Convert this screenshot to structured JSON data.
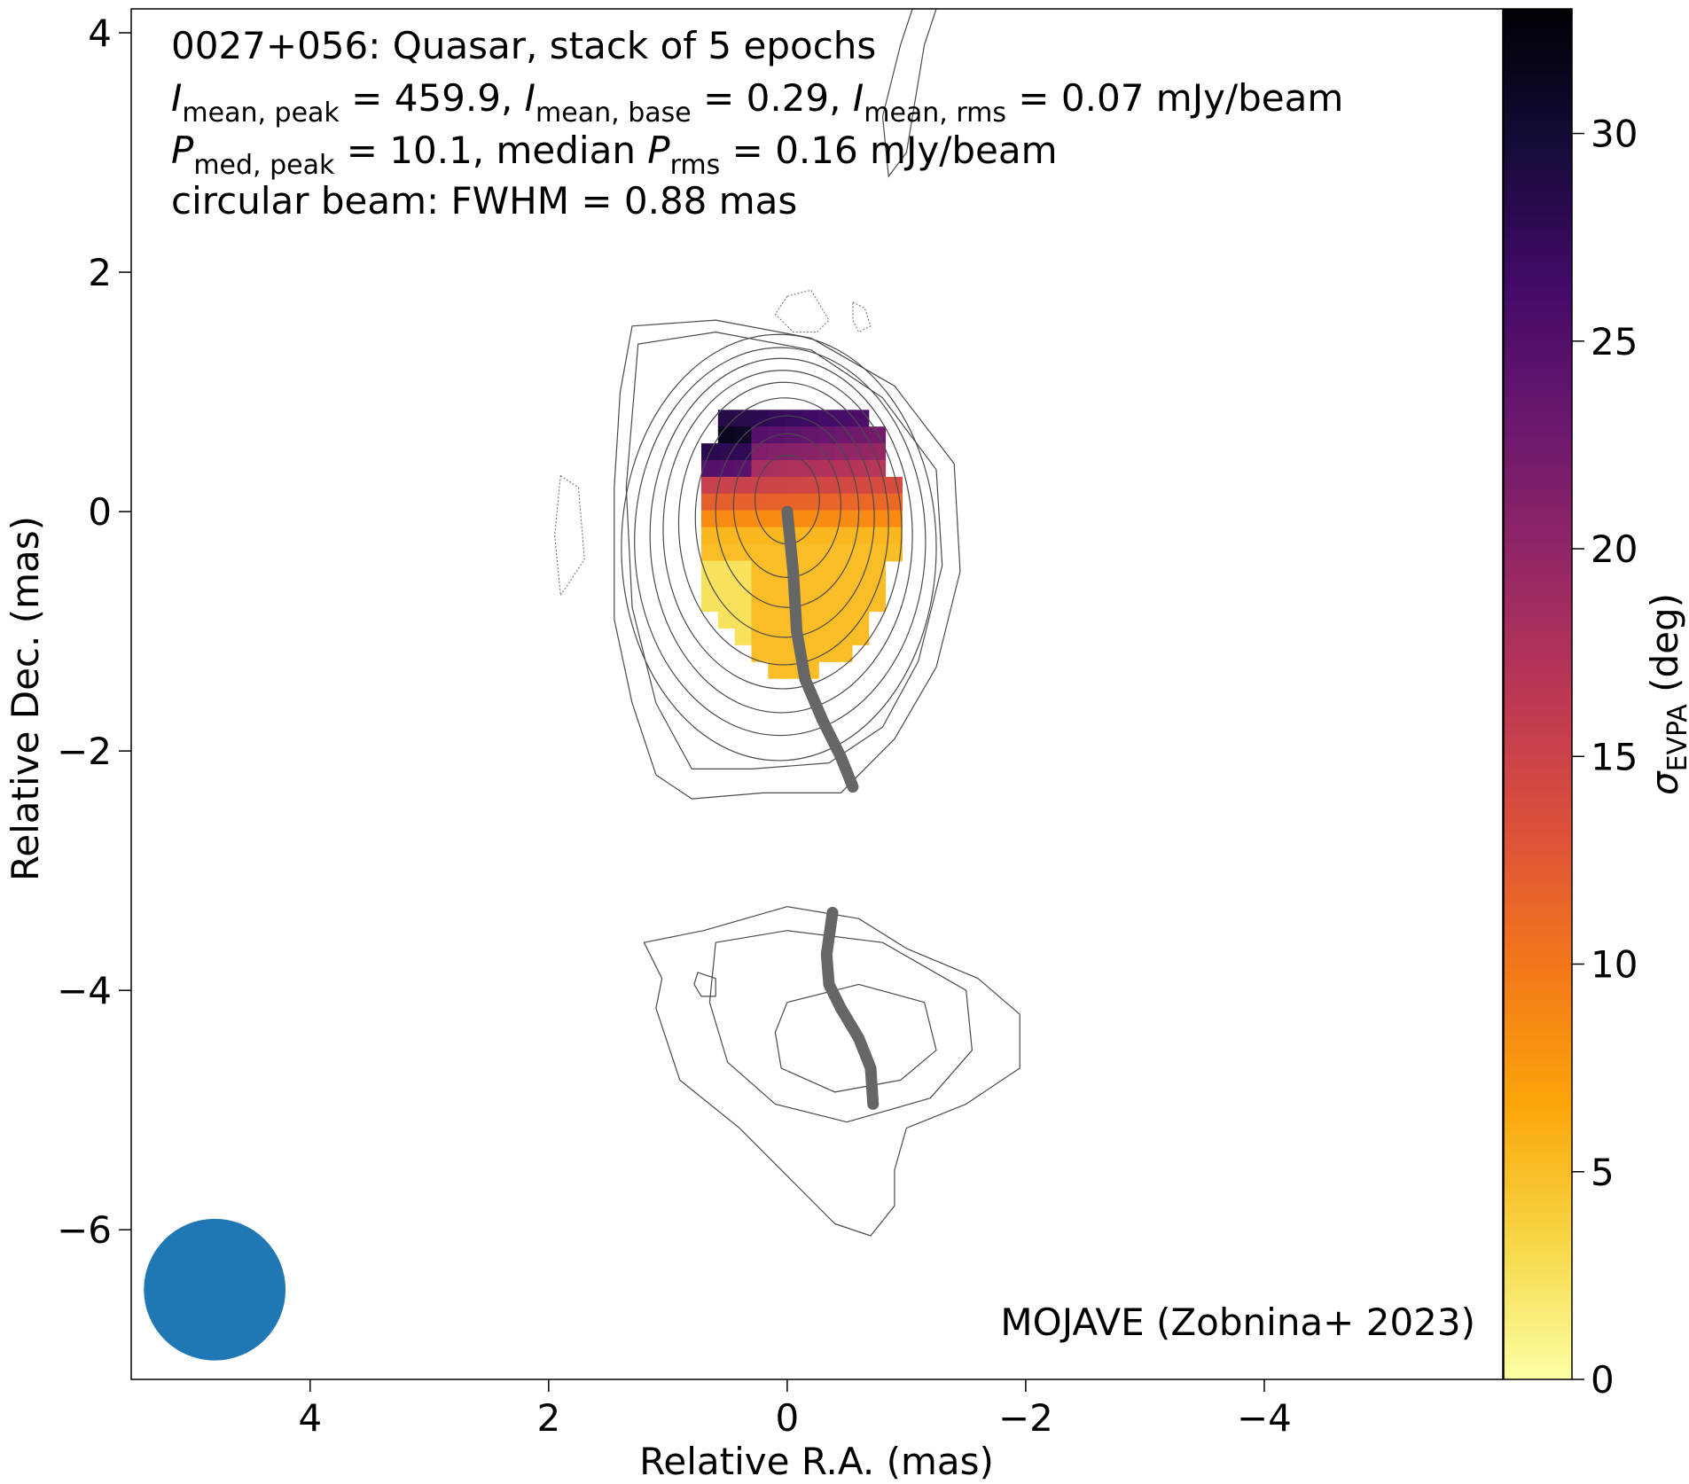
{
  "chart_data": {
    "type": "heatmap",
    "annotation": {
      "line1": "0027+056: Quasar, stack of 5 epochs",
      "line2": {
        "a_sym": "I",
        "a_sub": "mean, peak",
        "a_val": " = 459.9, ",
        "b_sym": "I",
        "b_sub": "mean, base",
        "b_val": " = 0.29, ",
        "c_sym": "I",
        "c_sub": "mean, rms",
        "c_val": " = 0.07 mJy/beam"
      },
      "line3": {
        "a_sym": "P",
        "a_sub": "med, peak",
        "a_val": " = 10.1, median ",
        "b_sym": "P",
        "b_sub": "rms",
        "b_val": " = 0.16 mJy/beam"
      },
      "line4": "circular beam: FWHM = 0.88 mas"
    },
    "credit": "MOJAVE (Zobnina+ 2023)",
    "xlabel": "Relative R.A. (mas)",
    "ylabel": "Relative Dec. (mas)",
    "colorbar": {
      "label_sym": "σ",
      "label_sub": "EVPA",
      "label_unit": " (deg)",
      "range": [
        0,
        33
      ],
      "ticks": [
        0,
        5,
        10,
        15,
        20,
        25,
        30
      ],
      "colormap": "inferno_r",
      "stops": [
        "#fcffa4",
        "#f6d746",
        "#fca50a",
        "#f37819",
        "#dd513a",
        "#bc3754",
        "#932667",
        "#6a176e",
        "#420a68",
        "#160b39",
        "#000004"
      ]
    },
    "xlim": [
      5.5,
      -6.0
    ],
    "ylim": [
      -7.25,
      4.2
    ],
    "xticks": [
      4,
      2,
      0,
      -2,
      -4
    ],
    "xtick_labels": [
      "4",
      "2",
      "0",
      "−2",
      "−4"
    ],
    "yticks": [
      -6,
      -4,
      -2,
      0,
      2,
      4
    ],
    "ytick_labels": [
      "−6",
      "−4",
      "−2",
      "0",
      "2",
      "4"
    ],
    "beam": {
      "center": [
        4.8,
        -6.5
      ],
      "fwhm_mas": 0.88,
      "color": "#1f77b4"
    },
    "ridge_lines": [
      {
        "color": "#666666",
        "points": [
          [
            0.0,
            0.0
          ],
          [
            -0.05,
            -0.5
          ],
          [
            -0.08,
            -1.0
          ],
          [
            -0.15,
            -1.4
          ],
          [
            -0.3,
            -1.75
          ],
          [
            -0.45,
            -2.05
          ],
          [
            -0.55,
            -2.3
          ]
        ]
      },
      {
        "color": "#666666",
        "points": [
          [
            -0.38,
            -3.35
          ],
          [
            -0.33,
            -3.7
          ],
          [
            -0.35,
            -3.95
          ],
          [
            -0.45,
            -4.15
          ],
          [
            -0.6,
            -4.4
          ],
          [
            -0.7,
            -4.65
          ],
          [
            -0.72,
            -4.95
          ]
        ]
      }
    ],
    "core_contours": [
      {
        "cx": 0.0,
        "cy": 0.1,
        "rx": 0.27,
        "ry": 0.37
      },
      {
        "cx": 0.0,
        "cy": 0.05,
        "rx": 0.45,
        "ry": 0.6
      },
      {
        "cx": 0.0,
        "cy": 0.0,
        "rx": 0.6,
        "ry": 0.8
      },
      {
        "cx": 0.02,
        "cy": -0.05,
        "rx": 0.75,
        "ry": 1.0
      },
      {
        "cx": 0.03,
        "cy": -0.1,
        "rx": 0.88,
        "ry": 1.18
      },
      {
        "cx": 0.04,
        "cy": -0.15,
        "rx": 1.0,
        "ry": 1.33
      },
      {
        "cx": 0.05,
        "cy": -0.2,
        "rx": 1.1,
        "ry": 1.48
      },
      {
        "cx": 0.06,
        "cy": -0.25,
        "rx": 1.22,
        "ry": 1.62
      },
      {
        "cx": 0.07,
        "cy": -0.3,
        "rx": 1.32,
        "ry": 1.78
      }
    ],
    "outer_contours": [
      [
        [
          1.3,
          1.55
        ],
        [
          0.6,
          1.6
        ],
        [
          -0.2,
          1.45
        ],
        [
          -0.9,
          1.05
        ],
        [
          -1.4,
          0.4
        ],
        [
          -1.45,
          -0.5
        ],
        [
          -1.25,
          -1.3
        ],
        [
          -0.9,
          -1.9
        ],
        [
          -0.45,
          -2.35
        ],
        [
          0.2,
          -2.35
        ],
        [
          0.8,
          -2.4
        ],
        [
          1.1,
          -2.2
        ],
        [
          1.3,
          -1.6
        ],
        [
          1.45,
          -0.9
        ],
        [
          1.45,
          0.2
        ],
        [
          1.4,
          1.0
        ],
        [
          1.3,
          1.55
        ]
      ],
      [
        [
          1.25,
          1.4
        ],
        [
          0.6,
          1.5
        ],
        [
          -0.2,
          1.35
        ],
        [
          -0.8,
          0.95
        ],
        [
          -1.25,
          0.35
        ],
        [
          -1.3,
          -0.45
        ],
        [
          -1.1,
          -1.25
        ],
        [
          -0.8,
          -1.8
        ],
        [
          -0.35,
          -2.1
        ],
        [
          0.3,
          -2.15
        ],
        [
          0.8,
          -2.15
        ],
        [
          1.1,
          -1.6
        ],
        [
          1.3,
          -0.8
        ],
        [
          1.35,
          0.2
        ],
        [
          1.25,
          1.4
        ]
      ],
      [
        [
          0.7,
          -3.5
        ],
        [
          0.0,
          -3.3
        ],
        [
          -0.6,
          -3.4
        ],
        [
          -1.0,
          -3.65
        ],
        [
          -1.6,
          -3.9
        ],
        [
          -1.95,
          -4.2
        ],
        [
          -1.95,
          -4.65
        ],
        [
          -1.5,
          -4.95
        ],
        [
          -1.0,
          -5.15
        ],
        [
          -0.9,
          -5.5
        ],
        [
          -0.9,
          -5.8
        ],
        [
          -0.7,
          -6.05
        ],
        [
          -0.4,
          -5.95
        ],
        [
          -0.1,
          -5.65
        ],
        [
          0.4,
          -5.15
        ],
        [
          0.9,
          -4.75
        ],
        [
          1.1,
          -4.15
        ],
        [
          1.05,
          -3.9
        ],
        [
          1.2,
          -3.6
        ],
        [
          0.7,
          -3.5
        ]
      ],
      [
        [
          0.6,
          -3.6
        ],
        [
          0.0,
          -3.5
        ],
        [
          -0.8,
          -3.6
        ],
        [
          -1.5,
          -4.0
        ],
        [
          -1.55,
          -4.5
        ],
        [
          -1.2,
          -4.9
        ],
        [
          -0.5,
          -5.1
        ],
        [
          0.1,
          -4.95
        ],
        [
          0.5,
          -4.6
        ],
        [
          0.65,
          -4.1
        ],
        [
          0.6,
          -3.6
        ]
      ],
      [
        [
          0.0,
          -4.1
        ],
        [
          -0.6,
          -3.95
        ],
        [
          -1.15,
          -4.1
        ],
        [
          -1.25,
          -4.5
        ],
        [
          -0.95,
          -4.75
        ],
        [
          -0.4,
          -4.85
        ],
        [
          0.05,
          -4.65
        ],
        [
          0.1,
          -4.35
        ],
        [
          0.0,
          -4.1
        ]
      ],
      [
        [
          0.75,
          -3.85
        ],
        [
          0.6,
          -3.9
        ],
        [
          0.6,
          -4.05
        ],
        [
          0.72,
          -4.05
        ],
        [
          0.78,
          -3.95
        ],
        [
          0.75,
          -3.85
        ]
      ]
    ],
    "dotted_contours": [
      [
        [
          0.0,
          1.8
        ],
        [
          -0.2,
          1.85
        ],
        [
          -0.35,
          1.6
        ],
        [
          -0.25,
          1.5
        ],
        [
          -0.05,
          1.5
        ],
        [
          0.1,
          1.65
        ],
        [
          0.0,
          1.8
        ]
      ],
      [
        [
          -0.55,
          1.75
        ],
        [
          -0.65,
          1.7
        ],
        [
          -0.7,
          1.55
        ],
        [
          -0.6,
          1.5
        ],
        [
          -0.55,
          1.6
        ],
        [
          -0.55,
          1.75
        ]
      ],
      [
        [
          1.9,
          0.3
        ],
        [
          1.75,
          0.2
        ],
        [
          1.7,
          -0.4
        ],
        [
          1.9,
          -0.7
        ],
        [
          1.95,
          -0.2
        ],
        [
          1.9,
          0.3
        ]
      ]
    ],
    "top_edge_contour": [
      [
        -1.25,
        4.2
      ],
      [
        -1.15,
        3.9
      ],
      [
        -1.0,
        3.0
      ],
      [
        -0.85,
        2.8
      ],
      [
        -0.8,
        3.3
      ],
      [
        -0.95,
        3.9
      ],
      [
        -1.05,
        4.2
      ]
    ],
    "sigma_map": {
      "pixel_mas": 0.14,
      "fill_threshold": 1.0,
      "center": [
        0.0,
        0.0
      ],
      "semi_axis_ra": 0.86,
      "semi_axis_dec": 1.28,
      "max_dec": 0.85,
      "gradient": "approximately 5 deg near the south-east edge rising to about 30 deg at the northern edge; black pixels near (0.6, 0.55)"
    }
  }
}
